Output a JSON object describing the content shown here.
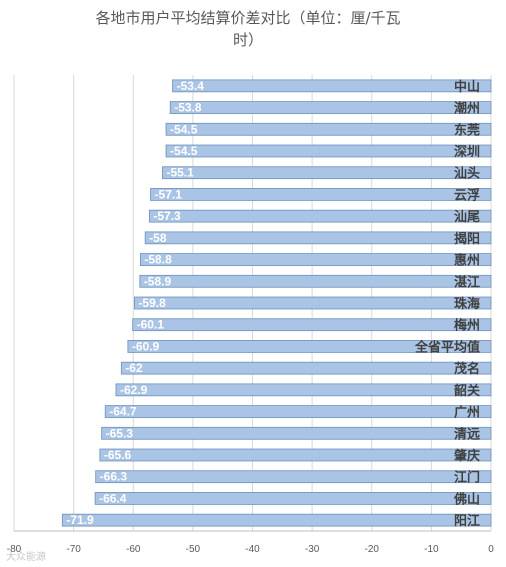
{
  "chart_data": {
    "type": "bar",
    "orientation": "horizontal",
    "title_lines": [
      "各地市用户平均结算价差对比（单位：厘/千瓦",
      "时）"
    ],
    "categories": [
      "中山",
      "潮州",
      "东莞",
      "深圳",
      "汕头",
      "云浮",
      "汕尾",
      "揭阳",
      "惠州",
      "湛江",
      "珠海",
      "梅州",
      "全省平均值",
      "茂名",
      "韶关",
      "广州",
      "清远",
      "肇庆",
      "江门",
      "佛山",
      "阳江"
    ],
    "values": [
      -53.4,
      -53.8,
      -54.5,
      -54.5,
      -55.1,
      -57.1,
      -57.3,
      -58,
      -58.8,
      -58.9,
      -59.8,
      -60.1,
      -60.9,
      -62,
      -62.9,
      -64.7,
      -65.3,
      -65.6,
      -66.3,
      -66.4,
      -71.9
    ],
    "xlim": [
      -80,
      0
    ],
    "xticks": [
      -80,
      -70,
      -60,
      -50,
      -40,
      -30,
      -20,
      -10,
      0
    ],
    "grid": true,
    "bar_color": "#a9c4e4"
  },
  "watermark": "大众能源"
}
